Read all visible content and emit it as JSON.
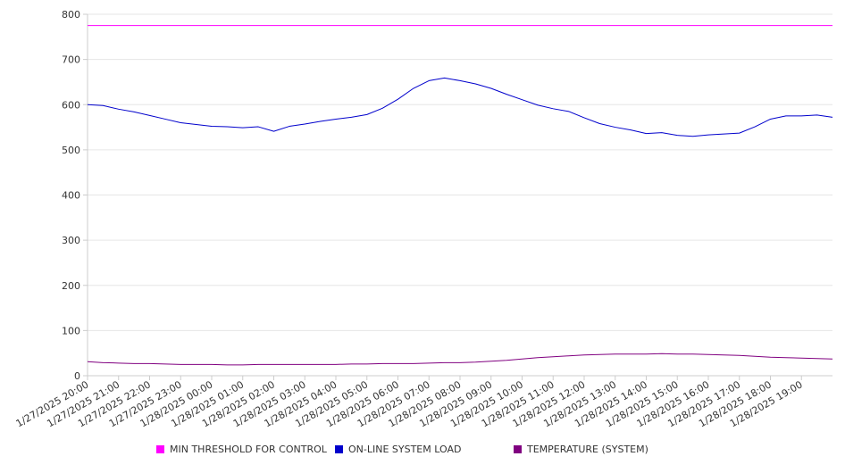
{
  "chart_data": {
    "type": "line",
    "title": "",
    "xlabel": "",
    "ylabel": "",
    "ylim": [
      0,
      800
    ],
    "yticks": [
      0,
      100,
      200,
      300,
      400,
      500,
      600,
      700,
      800
    ],
    "xlim": [
      "1/27/2025 20:00",
      "1/28/2025 20:00"
    ],
    "xtick_labels": [
      "1/27/2025 20:00",
      "1/27/2025 21:00",
      "1/27/2025 22:00",
      "1/27/2025 23:00",
      "1/28/2025 00:00",
      "1/28/2025 01:00",
      "1/28/2025 02:00",
      "1/28/2025 03:00",
      "1/28/2025 04:00",
      "1/28/2025 05:00",
      "1/28/2025 06:00",
      "1/28/2025 07:00",
      "1/28/2025 08:00",
      "1/28/2025 09:00",
      "1/28/2025 10:00",
      "1/28/2025 11:00",
      "1/28/2025 12:00",
      "1/28/2025 13:00",
      "1/28/2025 14:00",
      "1/28/2025 15:00",
      "1/28/2025 16:00",
      "1/28/2025 17:00",
      "1/28/2025 18:00",
      "1/28/2025 19:00"
    ],
    "grid": true,
    "legend_position": "bottom",
    "x": [
      "1/27/2025 20:00",
      "1/27/2025 20:30",
      "1/27/2025 21:00",
      "1/27/2025 21:30",
      "1/27/2025 22:00",
      "1/27/2025 22:30",
      "1/27/2025 23:00",
      "1/27/2025 23:30",
      "1/28/2025 00:00",
      "1/28/2025 00:30",
      "1/28/2025 01:00",
      "1/28/2025 01:30",
      "1/28/2025 02:00",
      "1/28/2025 02:30",
      "1/28/2025 03:00",
      "1/28/2025 03:30",
      "1/28/2025 04:00",
      "1/28/2025 04:30",
      "1/28/2025 05:00",
      "1/28/2025 05:30",
      "1/28/2025 06:00",
      "1/28/2025 06:30",
      "1/28/2025 07:00",
      "1/28/2025 07:30",
      "1/28/2025 08:00",
      "1/28/2025 08:30",
      "1/28/2025 09:00",
      "1/28/2025 09:30",
      "1/28/2025 10:00",
      "1/28/2025 10:30",
      "1/28/2025 11:00",
      "1/28/2025 11:30",
      "1/28/2025 12:00",
      "1/28/2025 12:30",
      "1/28/2025 13:00",
      "1/28/2025 13:30",
      "1/28/2025 14:00",
      "1/28/2025 14:30",
      "1/28/2025 15:00",
      "1/28/2025 15:30",
      "1/28/2025 16:00",
      "1/28/2025 16:30",
      "1/28/2025 17:00",
      "1/28/2025 17:30",
      "1/28/2025 18:00",
      "1/28/2025 18:30",
      "1/28/2025 19:00",
      "1/28/2025 19:30",
      "1/28/2025 20:00"
    ],
    "series": [
      {
        "name": "MIN THRESHOLD FOR CONTROL",
        "color": "#ff00ff",
        "values": [
          775,
          775,
          775,
          775,
          775,
          775,
          775,
          775,
          775,
          775,
          775,
          775,
          775,
          775,
          775,
          775,
          775,
          775,
          775,
          775,
          775,
          775,
          775,
          775,
          775,
          775,
          775,
          775,
          775,
          775,
          775,
          775,
          775,
          775,
          775,
          775,
          775,
          775,
          775,
          775,
          775,
          775,
          775,
          775,
          775,
          775,
          775,
          775,
          775
        ]
      },
      {
        "name": "ON-LINE SYSTEM LOAD",
        "color": "#0000cc",
        "values": [
          600,
          598,
          590,
          584,
          576,
          568,
          560,
          556,
          552,
          551,
          549,
          551,
          541,
          552,
          557,
          563,
          568,
          572,
          578,
          592,
          612,
          636,
          653,
          659,
          653,
          646,
          636,
          623,
          611,
          599,
          591,
          585,
          571,
          558,
          550,
          544,
          536,
          538,
          532,
          530,
          533,
          535,
          537,
          551,
          568,
          575,
          575,
          577,
          572
        ]
      },
      {
        "name": "TEMPERATURE (SYSTEM)",
        "color": "#800080",
        "values": [
          31,
          29,
          28,
          27,
          27,
          26,
          25,
          25,
          25,
          24,
          24,
          25,
          25,
          25,
          25,
          25,
          25,
          26,
          26,
          27,
          27,
          27,
          28,
          29,
          29,
          30,
          32,
          34,
          37,
          40,
          42,
          44,
          46,
          47,
          48,
          48,
          48,
          49,
          48,
          48,
          47,
          46,
          45,
          43,
          41,
          40,
          39,
          38,
          37
        ]
      }
    ]
  }
}
